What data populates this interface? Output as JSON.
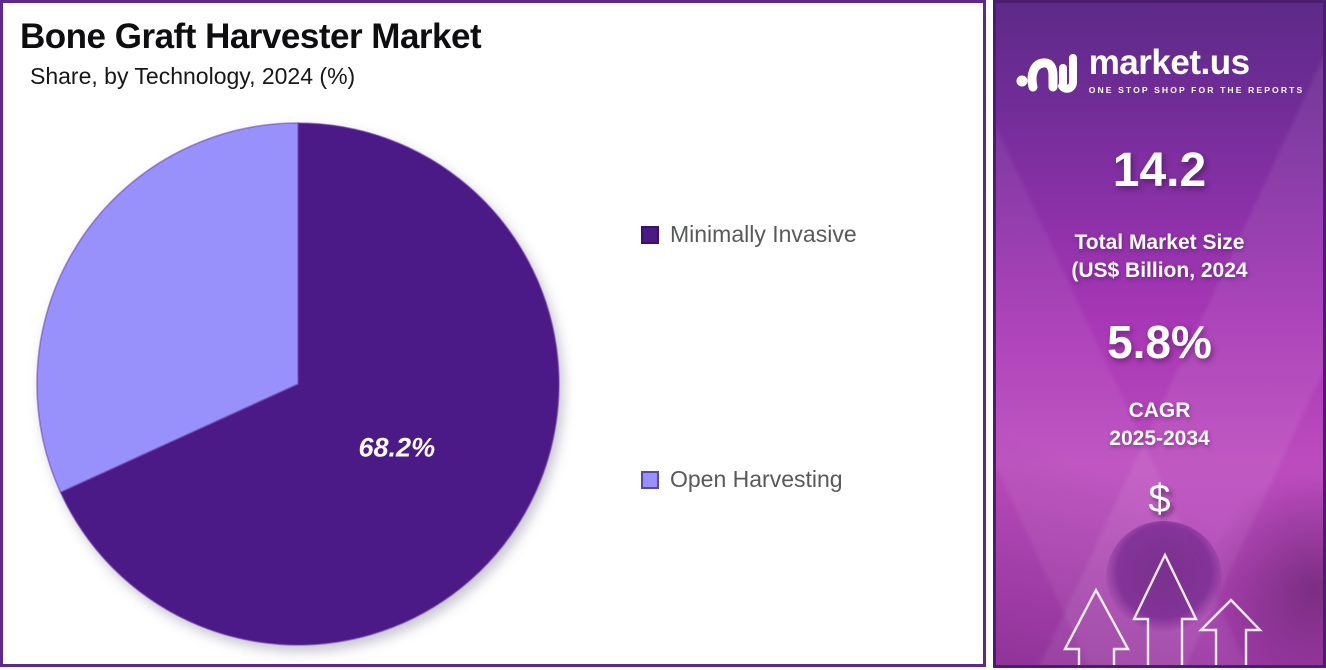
{
  "chart_panel": {
    "title": "Bone Graft Harvester Market",
    "subtitle": "Share, by Technology, 2024 (%)"
  },
  "chart_data": {
    "type": "pie",
    "title": "Bone Graft Harvester Market",
    "subtitle": "Share, by Technology, 2024 (%)",
    "unit": "%",
    "start_angle_deg": 0,
    "direction": "clockwise",
    "legend_position": "right",
    "slices": [
      {
        "label": "Minimally Invasive",
        "value": 68.2,
        "color": "#4c1a87",
        "data_label": "68.2%"
      },
      {
        "label": "Open Harvesting",
        "value": 31.8,
        "color": "#9891fc",
        "data_label": ""
      }
    ]
  },
  "sidebar": {
    "logo": {
      "brand": "market.us",
      "tagline": "ONE STOP SHOP FOR THE REPORTS"
    },
    "market_size": {
      "value": "14.2",
      "label_line1": "Total Market Size",
      "label_line2": "(US$ Billion, 2024"
    },
    "cagr": {
      "value": "5.8%",
      "label_line1": "CAGR",
      "label_line2": "2025-2034"
    },
    "dollar_symbol": "$"
  },
  "colors": {
    "panel_border": "#5b2a8c",
    "sidebar_border": "#4a1d6e",
    "slice_dark": "#4c1a87",
    "slice_light": "#9891fc",
    "sidebar_top": "#5e2a88",
    "sidebar_mid": "#a737b5",
    "sidebar_bottom": "#b044b6",
    "legend_text": "#58595b",
    "pie_label_text": "#ffffff"
  }
}
